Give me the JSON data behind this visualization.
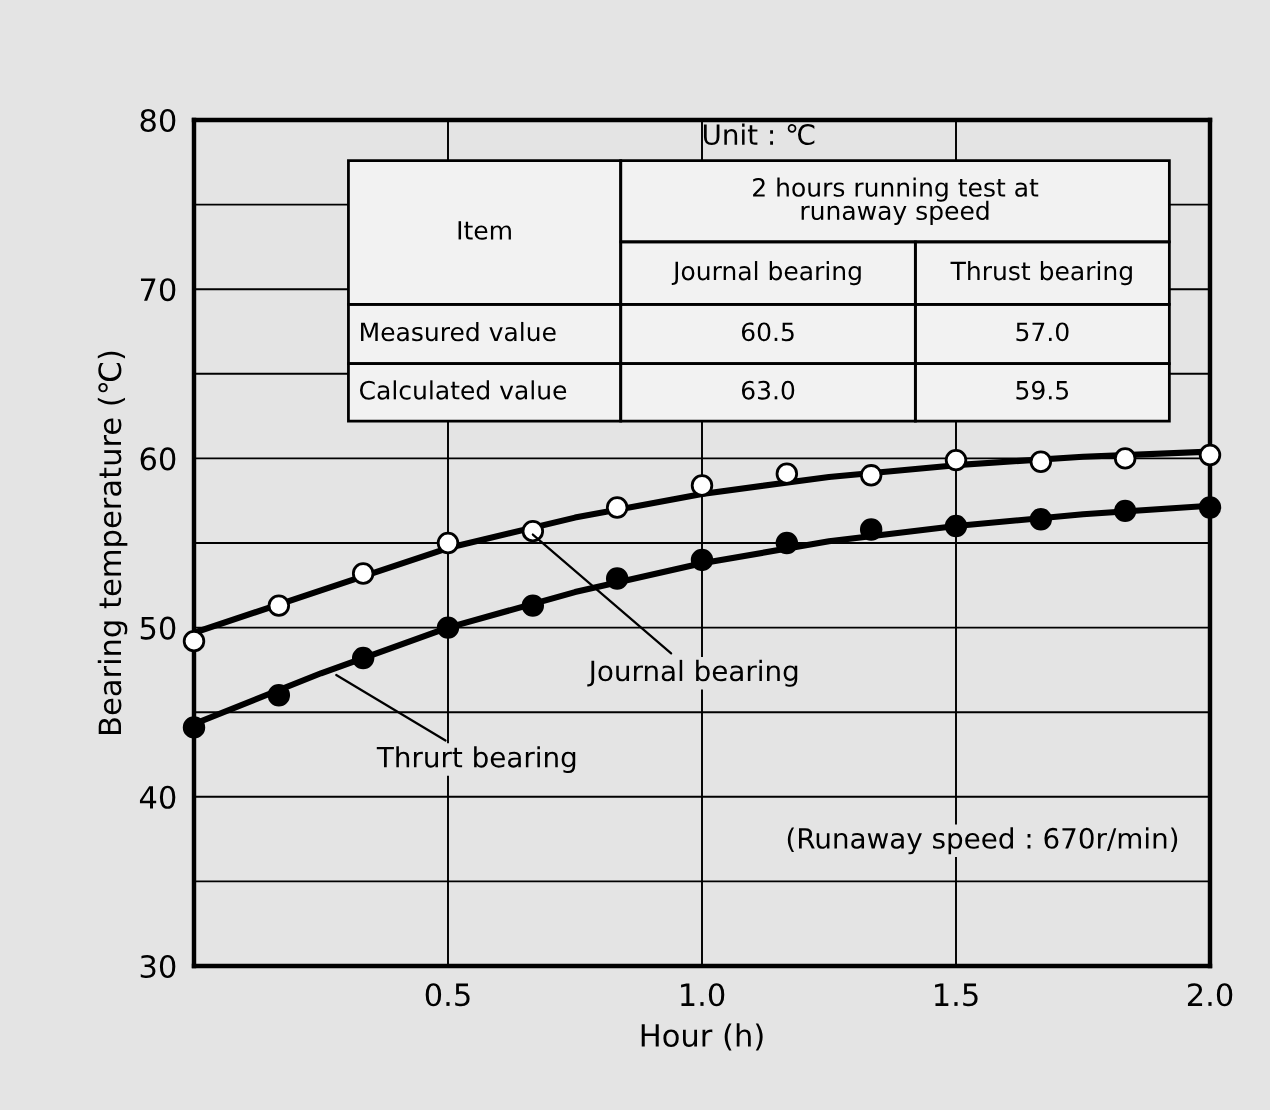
{
  "chart_data": {
    "type": "line",
    "xlabel": "Hour (h)",
    "ylabel": "Bearing temperature (℃)",
    "xlim": [
      0,
      2.0
    ],
    "xticks": [
      {
        "value": 0,
        "label": null
      },
      0.5,
      {
        "value": 1,
        "label": "1.0"
      },
      1.5,
      {
        "value": 2,
        "label": "2.0"
      }
    ],
    "ylim": [
      30,
      80
    ],
    "yticks": [
      30,
      {
        "value": 35,
        "label": null
      },
      40,
      {
        "value": 45,
        "label": null
      },
      50,
      {
        "value": 55,
        "label": null
      },
      60,
      {
        "value": 65,
        "label": null
      },
      70,
      {
        "value": 75,
        "label": null
      },
      80
    ],
    "grid": true,
    "legend": false,
    "marker": "circle",
    "x": [
      0,
      0.167,
      0.333,
      0.5,
      0.667,
      0.833,
      1.0,
      1.167,
      1.333,
      1.5,
      1.667,
      1.833,
      2.0
    ],
    "series": [
      {
        "type": "scatter",
        "color": "#ffffff",
        "values": [
          49.2,
          51.3,
          53.2,
          55.0,
          55.7,
          57.1,
          58.4,
          59.1,
          59.0,
          59.9,
          59.8,
          60.0,
          60.2
        ]
      },
      {
        "type": "scatter",
        "color": "#000000",
        "values": [
          44.1,
          46.0,
          48.2,
          50.0,
          51.3,
          52.9,
          54.0,
          55.0,
          55.8,
          56.0,
          56.4,
          56.9,
          57.1
        ]
      },
      {
        "marker": "none",
        "color": "#000000",
        "x": [
          0,
          0.25,
          0.5,
          0.75,
          1.0,
          1.25,
          1.5,
          1.75,
          2.0
        ],
        "values": [
          49.7,
          52.2,
          54.7,
          56.5,
          57.9,
          58.9,
          59.6,
          60.1,
          60.4
        ]
      },
      {
        "marker": "none",
        "color": "#000000",
        "x": [
          0,
          0.25,
          0.5,
          0.75,
          1.0,
          1.25,
          1.5,
          1.75,
          2.0
        ],
        "values": [
          44.3,
          47.3,
          50.0,
          52.1,
          53.8,
          55.1,
          56.0,
          56.7,
          57.2
        ]
      }
    ],
    "annotations": [
      "Unit : ℃",
      "Item",
      "2 hours running test at\nrunaway speed",
      "Journal bearing",
      "Thrust bearing",
      "Measured value",
      "60.5",
      "57.0",
      "Calculated value",
      "63.0",
      "59.5",
      "(Runaway speed : 670r/min)",
      {
        "text": "Journal bearing",
        "x": 0.667,
        "y": 55.5
      },
      {
        "text": "Thrurt bearing",
        "x": 0.28,
        "y": 47.2
      }
    ]
  }
}
